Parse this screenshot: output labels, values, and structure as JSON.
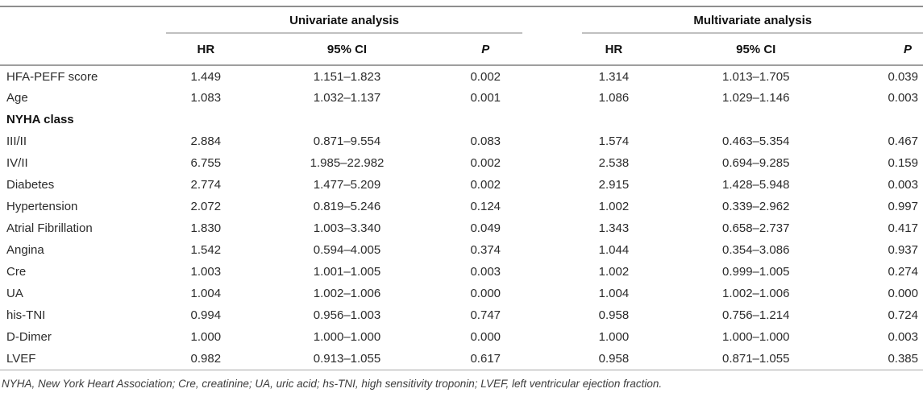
{
  "table": {
    "groups": [
      {
        "label": "Univariate analysis"
      },
      {
        "label": "Multivariate analysis"
      }
    ],
    "columns": {
      "hr": "HR",
      "ci": "95% CI",
      "p": "P"
    },
    "rows": [
      {
        "label": "HFA-PEFF score",
        "bold": false,
        "uni": {
          "hr": "1.449",
          "ci": "1.151–1.823",
          "p": "0.002"
        },
        "multi": {
          "hr": "1.314",
          "ci": "1.013–1.705",
          "p": "0.039"
        }
      },
      {
        "label": "Age",
        "bold": false,
        "uni": {
          "hr": "1.083",
          "ci": "1.032–1.137",
          "p": "0.001"
        },
        "multi": {
          "hr": "1.086",
          "ci": "1.029–1.146",
          "p": "0.003"
        }
      },
      {
        "label": "NYHA class",
        "bold": true,
        "uni": {
          "hr": "",
          "ci": "",
          "p": ""
        },
        "multi": {
          "hr": "",
          "ci": "",
          "p": ""
        }
      },
      {
        "label": "III/II",
        "bold": false,
        "uni": {
          "hr": "2.884",
          "ci": "0.871–9.554",
          "p": "0.083"
        },
        "multi": {
          "hr": "1.574",
          "ci": "0.463–5.354",
          "p": "0.467"
        }
      },
      {
        "label": "IV/II",
        "bold": false,
        "uni": {
          "hr": "6.755",
          "ci": "1.985–22.982",
          "p": "0.002"
        },
        "multi": {
          "hr": "2.538",
          "ci": "0.694–9.285",
          "p": "0.159"
        }
      },
      {
        "label": "Diabetes",
        "bold": false,
        "uni": {
          "hr": "2.774",
          "ci": "1.477–5.209",
          "p": "0.002"
        },
        "multi": {
          "hr": "2.915",
          "ci": "1.428–5.948",
          "p": "0.003"
        }
      },
      {
        "label": "Hypertension",
        "bold": false,
        "uni": {
          "hr": "2.072",
          "ci": "0.819–5.246",
          "p": "0.124"
        },
        "multi": {
          "hr": "1.002",
          "ci": "0.339–2.962",
          "p": "0.997"
        }
      },
      {
        "label": "Atrial Fibrillation",
        "bold": false,
        "uni": {
          "hr": "1.830",
          "ci": "1.003–3.340",
          "p": "0.049"
        },
        "multi": {
          "hr": "1.343",
          "ci": "0.658–2.737",
          "p": "0.417"
        }
      },
      {
        "label": "Angina",
        "bold": false,
        "uni": {
          "hr": "1.542",
          "ci": "0.594–4.005",
          "p": "0.374"
        },
        "multi": {
          "hr": "1.044",
          "ci": "0.354–3.086",
          "p": "0.937"
        }
      },
      {
        "label": "Cre",
        "bold": false,
        "uni": {
          "hr": "1.003",
          "ci": "1.001–1.005",
          "p": "0.003"
        },
        "multi": {
          "hr": "1.002",
          "ci": "0.999–1.005",
          "p": "0.274"
        }
      },
      {
        "label": "UA",
        "bold": false,
        "uni": {
          "hr": "1.004",
          "ci": "1.002–1.006",
          "p": "0.000"
        },
        "multi": {
          "hr": "1.004",
          "ci": "1.002–1.006",
          "p": "0.000"
        }
      },
      {
        "label": "his-TNI",
        "bold": false,
        "uni": {
          "hr": "0.994",
          "ci": "0.956–1.003",
          "p": "0.747"
        },
        "multi": {
          "hr": "0.958",
          "ci": "0.756–1.214",
          "p": "0.724"
        }
      },
      {
        "label": "D-Dimer",
        "bold": false,
        "uni": {
          "hr": "1.000",
          "ci": "1.000–1.000",
          "p": "0.000"
        },
        "multi": {
          "hr": "1.000",
          "ci": "1.000–1.000",
          "p": "0.003"
        }
      },
      {
        "label": "LVEF",
        "bold": false,
        "uni": {
          "hr": "0.982",
          "ci": "0.913–1.055",
          "p": "0.617"
        },
        "multi": {
          "hr": "0.958",
          "ci": "0.871–1.055",
          "p": "0.385"
        }
      }
    ],
    "footnote": "NYHA, New York Heart Association; Cre, creatinine; UA, uric acid; hs-TNI, high sensitivity troponin; LVEF, left ventricular ejection fraction."
  },
  "colors": {
    "text": "#2b2b2b",
    "rule_dark": "#8e8e8e",
    "rule_light": "#c0c0c0"
  }
}
